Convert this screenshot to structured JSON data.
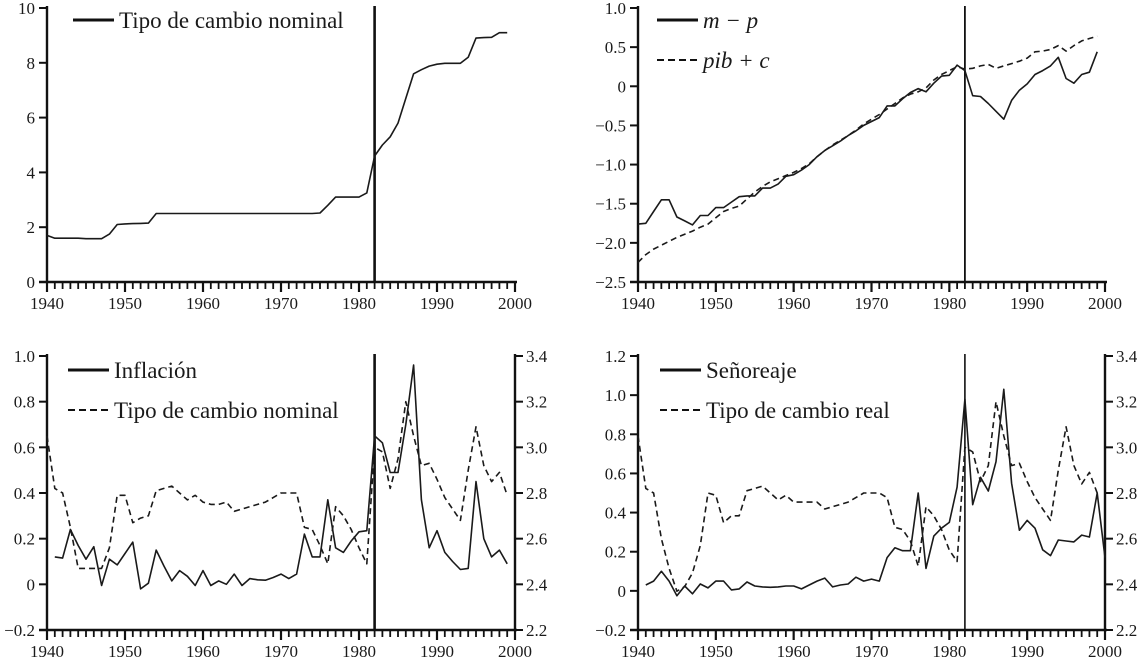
{
  "chart_data": [
    {
      "type": "line",
      "title": "",
      "xlim": [
        1940,
        2000
      ],
      "xticks": [
        1940,
        1950,
        1960,
        1970,
        1980,
        1990,
        2000
      ],
      "ylim": [
        0,
        10
      ],
      "yticks": [
        0,
        2,
        4,
        6,
        8,
        10
      ],
      "ytick_labels": [
        "0",
        "2",
        "4",
        "6",
        "8",
        "10"
      ],
      "break_year": 1982,
      "legend_placement": "top-left",
      "series": [
        {
          "name": "Tipo de cambio nominal",
          "style": "solid",
          "axis": "left",
          "start": 1940,
          "values": [
            1.7,
            1.6,
            1.6,
            1.6,
            1.6,
            1.58,
            1.58,
            1.58,
            1.75,
            2.1,
            2.12,
            2.13,
            2.14,
            2.15,
            2.5,
            2.5,
            2.5,
            2.5,
            2.5,
            2.5,
            2.5,
            2.5,
            2.5,
            2.5,
            2.5,
            2.5,
            2.5,
            2.5,
            2.5,
            2.5,
            2.5,
            2.5,
            2.5,
            2.5,
            2.5,
            2.52,
            2.8,
            3.1,
            3.1,
            3.1,
            3.1,
            3.25,
            4.6,
            5.0,
            5.3,
            5.8,
            6.7,
            7.6,
            7.75,
            7.88,
            7.95,
            7.98,
            7.98,
            7.98,
            8.2,
            8.9,
            8.92,
            8.93,
            9.1,
            9.1
          ]
        }
      ]
    },
    {
      "type": "line",
      "title": "",
      "xlim": [
        1940,
        2000
      ],
      "xticks": [
        1940,
        1950,
        1960,
        1970,
        1980,
        1990,
        2000
      ],
      "ylim": [
        -2.5,
        1.0
      ],
      "yticks": [
        -2.5,
        -2.0,
        -1.5,
        -1.0,
        -0.5,
        0,
        0.5,
        1.0
      ],
      "ytick_labels": [
        "−2.5",
        "−2.0",
        "−1.5",
        "−1.0",
        "−0.5",
        "0",
        "0.5",
        "1.0"
      ],
      "break_year": 1982,
      "legend_placement": "top-left",
      "series": [
        {
          "name": "m − p",
          "style": "solid",
          "axis": "left",
          "start": 1940,
          "values": [
            -1.76,
            -1.75,
            -1.6,
            -1.45,
            -1.45,
            -1.67,
            -1.72,
            -1.77,
            -1.65,
            -1.65,
            -1.55,
            -1.55,
            -1.48,
            -1.41,
            -1.4,
            -1.4,
            -1.3,
            -1.3,
            -1.25,
            -1.15,
            -1.13,
            -1.07,
            -1.0,
            -0.9,
            -0.82,
            -0.76,
            -0.7,
            -0.63,
            -0.57,
            -0.5,
            -0.45,
            -0.4,
            -0.25,
            -0.25,
            -0.16,
            -0.08,
            -0.03,
            -0.07,
            0.04,
            0.13,
            0.14,
            0.27,
            0.2,
            -0.12,
            -0.13,
            -0.22,
            -0.32,
            -0.42,
            -0.18,
            -0.05,
            0.03,
            0.15,
            0.2,
            0.26,
            0.37,
            0.1,
            0.04,
            0.15,
            0.18,
            0.44
          ]
        },
        {
          "name": "pib + c",
          "style": "dashed",
          "axis": "left",
          "start": 1940,
          "values": [
            -2.25,
            -2.15,
            -2.08,
            -2.03,
            -1.98,
            -1.93,
            -1.89,
            -1.85,
            -1.8,
            -1.76,
            -1.68,
            -1.6,
            -1.56,
            -1.53,
            -1.44,
            -1.35,
            -1.28,
            -1.22,
            -1.18,
            -1.14,
            -1.1,
            -1.05,
            -0.99,
            -0.9,
            -0.82,
            -0.75,
            -0.69,
            -0.63,
            -0.56,
            -0.48,
            -0.42,
            -0.36,
            -0.29,
            -0.22,
            -0.15,
            -0.1,
            -0.07,
            -0.02,
            0.08,
            0.15,
            0.2,
            0.25,
            0.22,
            0.23,
            0.26,
            0.28,
            0.23,
            0.26,
            0.29,
            0.32,
            0.36,
            0.44,
            0.45,
            0.47,
            0.52,
            0.45,
            0.52,
            0.58,
            0.61,
            0.64
          ]
        }
      ]
    },
    {
      "type": "line",
      "title": "",
      "xlim": [
        1940,
        2000
      ],
      "xticks": [
        1940,
        1950,
        1960,
        1970,
        1980,
        1990,
        2000
      ],
      "ylim": [
        -0.2,
        1.0
      ],
      "yticks": [
        -0.2,
        0,
        0.2,
        0.4,
        0.6,
        0.8,
        1.0
      ],
      "ytick_labels": [
        "−0.2",
        "0",
        "0.2",
        "0.4",
        "0.6",
        "0.8",
        "1.0"
      ],
      "y2lim": [
        2.2,
        3.4
      ],
      "y2ticks": [
        2.2,
        2.4,
        2.6,
        2.8,
        3.0,
        3.2,
        3.4
      ],
      "y2tick_labels": [
        "2.2",
        "2.4",
        "2.6",
        "2.8",
        "3.0",
        "3.2",
        "3.4"
      ],
      "break_year": 1982,
      "legend_placement": "top-left",
      "series": [
        {
          "name": "Inflación",
          "style": "solid",
          "axis": "left",
          "start": 1941,
          "values": [
            0.12,
            0.115,
            0.24,
            0.17,
            0.11,
            0.165,
            -0.005,
            0.11,
            0.085,
            0.135,
            0.185,
            -0.02,
            0.005,
            0.15,
            0.08,
            0.015,
            0.06,
            0.035,
            -0.005,
            0.06,
            -0.005,
            0.015,
            0.0,
            0.045,
            -0.005,
            0.025,
            0.02,
            0.018,
            0.03,
            0.045,
            0.025,
            0.045,
            0.22,
            0.12,
            0.12,
            0.37,
            0.16,
            0.14,
            0.19,
            0.23,
            0.235,
            0.65,
            0.62,
            0.49,
            0.49,
            0.7,
            0.96,
            0.37,
            0.16,
            0.235,
            0.14,
            0.1,
            0.065,
            0.07,
            0.45,
            0.2,
            0.12,
            0.15,
            0.09
          ]
        },
        {
          "name": "Tipo de cambio nominal",
          "style": "dashed",
          "axis": "right",
          "start": 1940,
          "values": [
            3.05,
            2.82,
            2.8,
            2.65,
            2.47,
            2.47,
            2.47,
            2.47,
            2.56,
            2.79,
            2.79,
            2.67,
            2.69,
            2.7,
            2.81,
            2.82,
            2.83,
            2.8,
            2.77,
            2.79,
            2.76,
            2.75,
            2.75,
            2.76,
            2.72,
            2.73,
            2.74,
            2.75,
            2.76,
            2.78,
            2.8,
            2.8,
            2.8,
            2.65,
            2.64,
            2.57,
            2.49,
            2.74,
            2.7,
            2.64,
            2.56,
            2.49,
            3.0,
            2.98,
            2.82,
            2.95,
            3.2,
            3.05,
            2.92,
            2.93,
            2.86,
            2.78,
            2.73,
            2.68,
            2.9,
            3.09,
            2.92,
            2.85,
            2.89,
            2.79
          ]
        }
      ]
    },
    {
      "type": "line",
      "title": "",
      "xlim": [
        1940,
        2000
      ],
      "xticks": [
        1940,
        1950,
        1960,
        1970,
        1980,
        1990,
        2000
      ],
      "ylim": [
        -0.2,
        1.2
      ],
      "yticks": [
        -0.2,
        0,
        0.2,
        0.4,
        0.6,
        0.8,
        1.0,
        1.2
      ],
      "ytick_labels": [
        "−0.2",
        "0",
        "0.2",
        "0.4",
        "0.6",
        "0.8",
        "1.0",
        "1.2"
      ],
      "y2lim": [
        2.2,
        3.4
      ],
      "y2ticks": [
        2.2,
        2.4,
        2.6,
        2.8,
        3.0,
        3.2,
        3.4
      ],
      "y2tick_labels": [
        "2.2",
        "2.4",
        "2.6",
        "2.8",
        "3.0",
        "3.2",
        "3.4"
      ],
      "break_year": 1982,
      "legend_placement": "top-left",
      "series": [
        {
          "name": "Señoreaje",
          "style": "solid",
          "axis": "left",
          "start": 1941,
          "values": [
            0.03,
            0.05,
            0.1,
            0.05,
            -0.025,
            0.025,
            -0.015,
            0.035,
            0.015,
            0.05,
            0.05,
            0.005,
            0.01,
            0.045,
            0.025,
            0.02,
            0.018,
            0.02,
            0.025,
            0.025,
            0.01,
            0.03,
            0.05,
            0.065,
            0.02,
            0.03,
            0.035,
            0.07,
            0.05,
            0.06,
            0.05,
            0.17,
            0.22,
            0.205,
            0.205,
            0.5,
            0.115,
            0.28,
            0.32,
            0.35,
            0.53,
            0.98,
            0.44,
            0.58,
            0.51,
            0.66,
            1.03,
            0.55,
            0.31,
            0.36,
            0.32,
            0.21,
            0.18,
            0.26,
            0.255,
            0.25,
            0.285,
            0.275,
            0.5,
            0.17
          ]
        },
        {
          "name": "Tipo de cambio real",
          "style": "dashed",
          "axis": "right",
          "start": 1940,
          "values": [
            3.05,
            2.82,
            2.8,
            2.6,
            2.47,
            2.37,
            2.39,
            2.45,
            2.57,
            2.8,
            2.79,
            2.67,
            2.7,
            2.7,
            2.81,
            2.82,
            2.83,
            2.8,
            2.77,
            2.79,
            2.76,
            2.76,
            2.76,
            2.76,
            2.73,
            2.74,
            2.75,
            2.76,
            2.78,
            2.8,
            2.8,
            2.8,
            2.78,
            2.65,
            2.64,
            2.59,
            2.48,
            2.74,
            2.7,
            2.64,
            2.55,
            2.5,
            3.0,
            2.98,
            2.85,
            2.92,
            3.2,
            3.05,
            2.92,
            2.93,
            2.85,
            2.78,
            2.73,
            2.68,
            2.9,
            3.09,
            2.92,
            2.84,
            2.89,
            2.8
          ]
        }
      ]
    }
  ]
}
